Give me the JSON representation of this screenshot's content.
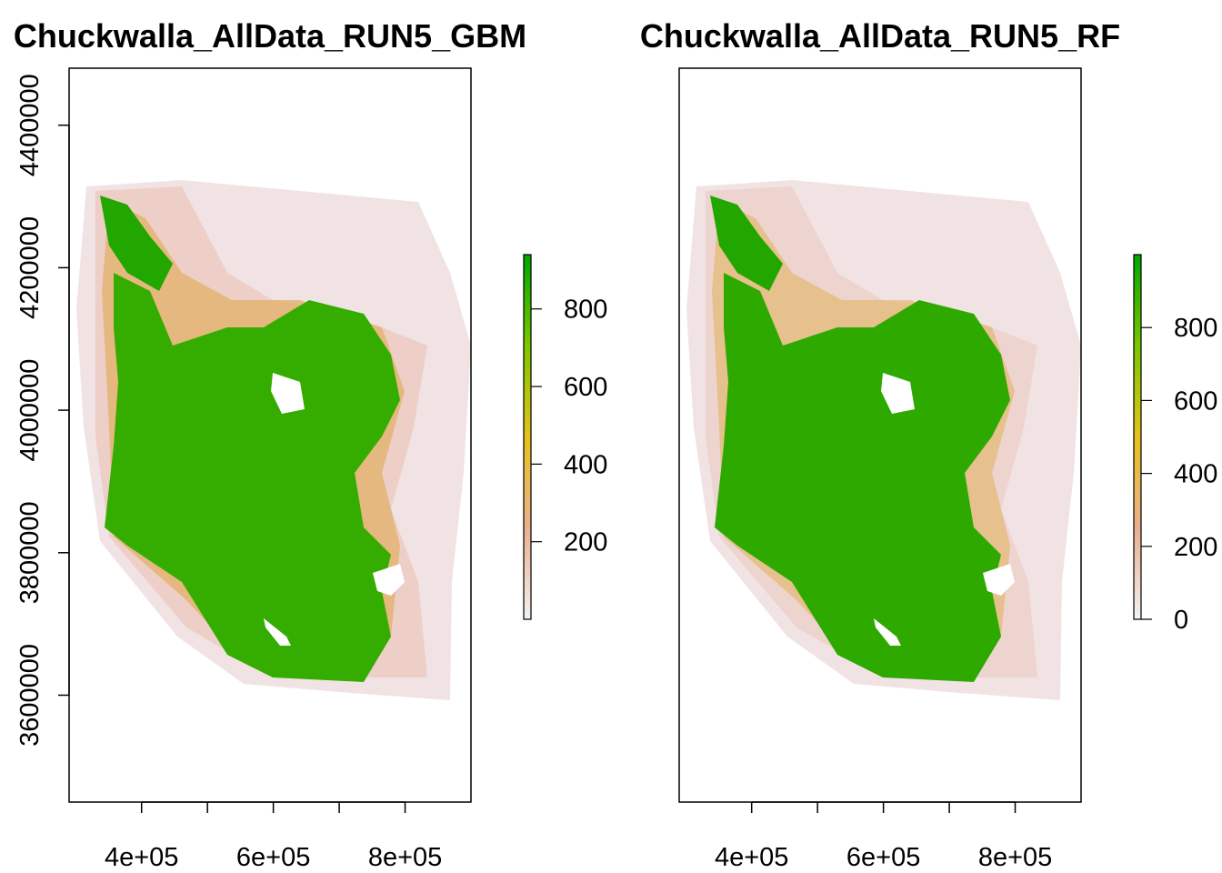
{
  "chart_data": [
    {
      "type": "heatmap",
      "title": "Chuckwalla_AllData_RUN5_GBM",
      "xlabel": "",
      "ylabel": "",
      "xlim": [
        290000,
        900000
      ],
      "ylim": [
        3450000,
        4480000
      ],
      "x_ticks": [
        400000,
        500000,
        600000,
        700000,
        800000
      ],
      "x_tick_labels": [
        "4e+05",
        "",
        "6e+05",
        "",
        "8e+05"
      ],
      "y_ticks": [
        3600000,
        3800000,
        4000000,
        4200000,
        4400000
      ],
      "y_tick_labels": [
        "3600000",
        "3800000",
        "4000000",
        "4200000",
        "4400000"
      ],
      "colorbar": {
        "min": 0,
        "max": 940,
        "ticks": [
          200,
          400,
          600,
          800
        ],
        "tick_labels": [
          "200",
          "400",
          "600",
          "800"
        ],
        "colors": [
          "#f2f2f2",
          "#ebb090",
          "#e6c21c",
          "#7cc700",
          "#00a600"
        ]
      },
      "grid": false,
      "legend": "right (color bar)"
    },
    {
      "type": "heatmap",
      "title": "Chuckwalla_AllData_RUN5_RF",
      "xlabel": "",
      "ylabel": "",
      "xlim": [
        290000,
        900000
      ],
      "ylim": [
        3450000,
        4480000
      ],
      "x_ticks": [
        400000,
        500000,
        600000,
        700000,
        800000
      ],
      "x_tick_labels": [
        "4e+05",
        "",
        "6e+05",
        "",
        "8e+05"
      ],
      "colorbar": {
        "min": 0,
        "max": 1000,
        "ticks": [
          0,
          200,
          400,
          600,
          800
        ],
        "tick_labels": [
          "0",
          "200",
          "400",
          "600",
          "800"
        ],
        "colors": [
          "#f2f2f2",
          "#ebb090",
          "#e6c21c",
          "#7cc700",
          "#00a600"
        ]
      },
      "grid": false,
      "legend": "right (color bar)"
    }
  ]
}
